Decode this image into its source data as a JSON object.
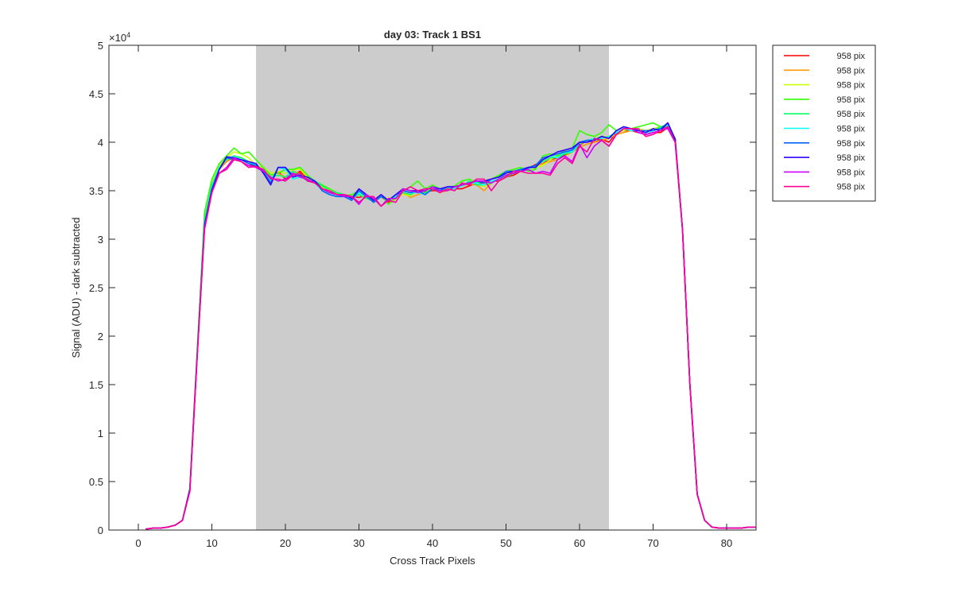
{
  "chart_data": {
    "type": "line",
    "title": "day 03: Track 1  BS1",
    "xlabel": "Cross Track Pixels",
    "ylabel": "Signal (ADU) - dark subtracted",
    "y_exponent_label": "×10",
    "y_exponent": "4",
    "xlim": [
      -4,
      84
    ],
    "ylim": [
      0,
      5
    ],
    "xticks": [
      0,
      10,
      20,
      30,
      40,
      50,
      60,
      70,
      80
    ],
    "yticks": [
      0,
      0.5,
      1,
      1.5,
      2,
      2.5,
      3,
      3.5,
      4,
      4.5,
      5
    ],
    "ytick_labels": [
      "0",
      "0.5",
      "1",
      "1.5",
      "2",
      "2.5",
      "3",
      "3.5",
      "4",
      "4.5",
      "5"
    ],
    "shaded_region": {
      "x": [
        16,
        64
      ],
      "color": "#cccccc"
    },
    "legend_placement": "outside-top-right",
    "grid": false,
    "x": [
      1,
      2,
      3,
      4,
      5,
      6,
      7,
      8,
      9,
      10,
      11,
      12,
      13,
      14,
      15,
      16,
      17,
      18,
      19,
      20,
      21,
      22,
      23,
      24,
      25,
      26,
      27,
      28,
      29,
      30,
      31,
      32,
      33,
      34,
      35,
      36,
      37,
      38,
      39,
      40,
      41,
      42,
      43,
      44,
      45,
      46,
      47,
      48,
      49,
      50,
      51,
      52,
      53,
      54,
      55,
      56,
      57,
      58,
      59,
      60,
      61,
      62,
      63,
      64,
      65,
      66,
      67,
      68,
      69,
      70,
      71,
      72,
      73,
      74,
      75,
      76,
      77,
      78,
      79,
      80,
      81,
      82,
      83,
      84
    ],
    "series": [
      {
        "name": "958 pix",
        "color": "#ff0000",
        "values": [
          0.01,
          0.02,
          0.02,
          0.03,
          0.05,
          0.1,
          0.42,
          1.8,
          3.15,
          3.5,
          3.72,
          3.8,
          3.85,
          3.82,
          3.78,
          3.74,
          3.7,
          3.62,
          3.7,
          3.62,
          3.66,
          3.7,
          3.62,
          3.58,
          3.54,
          3.5,
          3.46,
          3.44,
          3.44,
          3.43,
          3.45,
          3.38,
          3.44,
          3.38,
          3.44,
          3.5,
          3.48,
          3.5,
          3.49,
          3.5,
          3.5,
          3.52,
          3.52,
          3.52,
          3.55,
          3.58,
          3.58,
          3.6,
          3.6,
          3.64,
          3.66,
          3.7,
          3.73,
          3.77,
          3.78,
          3.82,
          3.84,
          3.87,
          3.9,
          3.97,
          4.02,
          4.0,
          4.03,
          4.0,
          4.1,
          4.12,
          4.12,
          4.1,
          4.08,
          4.1,
          4.1,
          4.15,
          4.02,
          3.1,
          1.5,
          0.37,
          0.1,
          0.03,
          0.02,
          0.02,
          0.02,
          0.02,
          0.03,
          0.03
        ]
      },
      {
        "name": "958 pix",
        "color": "#ff9900",
        "values": [
          0.01,
          0.02,
          0.02,
          0.03,
          0.05,
          0.1,
          0.42,
          1.8,
          3.18,
          3.52,
          3.72,
          3.8,
          3.86,
          3.84,
          3.8,
          3.76,
          3.72,
          3.66,
          3.68,
          3.64,
          3.7,
          3.68,
          3.62,
          3.58,
          3.54,
          3.5,
          3.47,
          3.45,
          3.42,
          3.46,
          3.42,
          3.4,
          3.44,
          3.4,
          3.42,
          3.48,
          3.43,
          3.46,
          3.48,
          3.52,
          3.48,
          3.5,
          3.52,
          3.55,
          3.57,
          3.56,
          3.5,
          3.58,
          3.62,
          3.65,
          3.68,
          3.7,
          3.72,
          3.75,
          3.78,
          3.8,
          3.82,
          3.86,
          3.9,
          3.95,
          3.98,
          4.0,
          4.02,
          4.04,
          4.08,
          4.1,
          4.12,
          4.12,
          4.1,
          4.12,
          4.14,
          4.16,
          4.02,
          3.1,
          1.5,
          0.37,
          0.1,
          0.03,
          0.02,
          0.02,
          0.02,
          0.02,
          0.03,
          0.03
        ]
      },
      {
        "name": "958 pix",
        "color": "#ccff00",
        "values": [
          0.01,
          0.02,
          0.02,
          0.03,
          0.05,
          0.1,
          0.42,
          1.82,
          3.22,
          3.58,
          3.76,
          3.84,
          3.9,
          3.88,
          3.84,
          3.76,
          3.74,
          3.68,
          3.7,
          3.68,
          3.72,
          3.72,
          3.64,
          3.58,
          3.54,
          3.5,
          3.48,
          3.46,
          3.44,
          3.46,
          3.44,
          3.4,
          3.44,
          3.42,
          3.44,
          3.46,
          3.45,
          3.5,
          3.5,
          3.52,
          3.5,
          3.52,
          3.54,
          3.55,
          3.58,
          3.58,
          3.54,
          3.6,
          3.62,
          3.66,
          3.7,
          3.72,
          3.72,
          3.74,
          3.76,
          3.82,
          3.86,
          3.9,
          3.92,
          3.98,
          4.02,
          4.04,
          4.06,
          4.06,
          4.1,
          4.12,
          4.14,
          4.14,
          4.12,
          4.14,
          4.16,
          4.18,
          4.04,
          3.1,
          1.5,
          0.37,
          0.1,
          0.03,
          0.02,
          0.02,
          0.02,
          0.02,
          0.03,
          0.03
        ]
      },
      {
        "name": "958 pix",
        "color": "#33ff00",
        "values": [
          0.01,
          0.02,
          0.02,
          0.03,
          0.05,
          0.1,
          0.43,
          1.85,
          3.28,
          3.62,
          3.78,
          3.86,
          3.94,
          3.88,
          3.9,
          3.82,
          3.74,
          3.66,
          3.68,
          3.72,
          3.72,
          3.74,
          3.66,
          3.6,
          3.56,
          3.52,
          3.48,
          3.45,
          3.46,
          3.5,
          3.44,
          3.38,
          3.46,
          3.36,
          3.42,
          3.5,
          3.54,
          3.6,
          3.52,
          3.56,
          3.52,
          3.52,
          3.55,
          3.6,
          3.62,
          3.58,
          3.6,
          3.62,
          3.66,
          3.7,
          3.72,
          3.74,
          3.7,
          3.72,
          3.86,
          3.88,
          3.86,
          3.92,
          3.94,
          4.12,
          4.08,
          4.06,
          4.1,
          4.18,
          4.12,
          4.16,
          4.14,
          4.16,
          4.18,
          4.2,
          4.16,
          4.18,
          4.04,
          3.1,
          1.5,
          0.37,
          0.1,
          0.03,
          0.02,
          0.02,
          0.02,
          0.02,
          0.03,
          0.03
        ]
      },
      {
        "name": "958 pix",
        "color": "#00ff66",
        "values": [
          0.01,
          0.02,
          0.02,
          0.03,
          0.05,
          0.1,
          0.42,
          1.82,
          3.2,
          3.56,
          3.74,
          3.82,
          3.86,
          3.84,
          3.8,
          3.76,
          3.72,
          3.64,
          3.66,
          3.64,
          3.7,
          3.66,
          3.64,
          3.6,
          3.55,
          3.5,
          3.48,
          3.46,
          3.44,
          3.46,
          3.42,
          3.4,
          3.44,
          3.4,
          3.44,
          3.48,
          3.46,
          3.5,
          3.48,
          3.52,
          3.5,
          3.52,
          3.52,
          3.55,
          3.6,
          3.56,
          3.56,
          3.58,
          3.62,
          3.64,
          3.68,
          3.7,
          3.72,
          3.76,
          3.8,
          3.84,
          3.84,
          3.88,
          3.9,
          3.98,
          4.02,
          4.02,
          4.04,
          4.06,
          4.1,
          4.14,
          4.14,
          4.12,
          4.1,
          4.12,
          4.16,
          4.16,
          4.02,
          3.1,
          1.5,
          0.37,
          0.1,
          0.03,
          0.02,
          0.02,
          0.02,
          0.02,
          0.03,
          0.03
        ]
      },
      {
        "name": "958 pix",
        "color": "#00ffff",
        "values": [
          0.01,
          0.02,
          0.02,
          0.03,
          0.05,
          0.1,
          0.42,
          1.8,
          3.18,
          3.54,
          3.74,
          3.84,
          3.85,
          3.82,
          3.8,
          3.76,
          3.7,
          3.6,
          3.74,
          3.72,
          3.62,
          3.64,
          3.62,
          3.58,
          3.5,
          3.46,
          3.44,
          3.46,
          3.4,
          3.48,
          3.44,
          3.38,
          3.44,
          3.4,
          3.44,
          3.5,
          3.48,
          3.48,
          3.46,
          3.52,
          3.5,
          3.54,
          3.52,
          3.55,
          3.58,
          3.58,
          3.56,
          3.6,
          3.62,
          3.68,
          3.7,
          3.72,
          3.72,
          3.76,
          3.82,
          3.86,
          3.84,
          3.9,
          3.9,
          4.0,
          4.02,
          4.04,
          4.04,
          4.06,
          4.1,
          4.14,
          4.12,
          4.12,
          4.1,
          4.12,
          4.14,
          4.18,
          4.03,
          3.1,
          1.5,
          0.37,
          0.1,
          0.03,
          0.02,
          0.02,
          0.02,
          0.02,
          0.03,
          0.03
        ]
      },
      {
        "name": "958 pix",
        "color": "#0066ff",
        "values": [
          0.01,
          0.02,
          0.02,
          0.03,
          0.05,
          0.1,
          0.42,
          1.8,
          3.16,
          3.52,
          3.72,
          3.84,
          3.82,
          3.82,
          3.78,
          3.76,
          3.7,
          3.58,
          3.74,
          3.74,
          3.66,
          3.66,
          3.6,
          3.6,
          3.5,
          3.46,
          3.44,
          3.44,
          3.4,
          3.5,
          3.44,
          3.38,
          3.44,
          3.4,
          3.46,
          3.5,
          3.48,
          3.5,
          3.46,
          3.52,
          3.5,
          3.54,
          3.54,
          3.56,
          3.58,
          3.6,
          3.58,
          3.62,
          3.64,
          3.7,
          3.7,
          3.72,
          3.74,
          3.76,
          3.84,
          3.86,
          3.88,
          3.9,
          3.92,
          4.0,
          4.02,
          4.02,
          4.06,
          4.04,
          4.12,
          4.16,
          4.14,
          4.12,
          4.12,
          4.12,
          4.14,
          4.2,
          4.03,
          3.1,
          1.5,
          0.37,
          0.1,
          0.03,
          0.02,
          0.02,
          0.02,
          0.02,
          0.03,
          0.03
        ]
      },
      {
        "name": "958 pix",
        "color": "#3300ff",
        "values": [
          0.01,
          0.02,
          0.02,
          0.03,
          0.05,
          0.1,
          0.42,
          1.8,
          3.14,
          3.5,
          3.72,
          3.85,
          3.84,
          3.82,
          3.8,
          3.78,
          3.68,
          3.56,
          3.74,
          3.74,
          3.64,
          3.66,
          3.64,
          3.6,
          3.52,
          3.48,
          3.46,
          3.46,
          3.42,
          3.52,
          3.46,
          3.4,
          3.46,
          3.4,
          3.46,
          3.52,
          3.5,
          3.5,
          3.5,
          3.54,
          3.52,
          3.54,
          3.54,
          3.56,
          3.58,
          3.6,
          3.6,
          3.62,
          3.64,
          3.68,
          3.7,
          3.7,
          3.74,
          3.74,
          3.82,
          3.86,
          3.9,
          3.92,
          3.94,
          4.0,
          4.0,
          4.02,
          4.06,
          4.04,
          4.12,
          4.16,
          4.14,
          4.12,
          4.1,
          4.14,
          4.12,
          4.2,
          4.03,
          3.1,
          1.5,
          0.37,
          0.1,
          0.03,
          0.02,
          0.02,
          0.02,
          0.02,
          0.03,
          0.03
        ]
      },
      {
        "name": "958 pix",
        "color": "#cc00ff",
        "values": [
          0.01,
          0.02,
          0.02,
          0.03,
          0.05,
          0.1,
          0.4,
          1.78,
          3.12,
          3.48,
          3.68,
          3.74,
          3.84,
          3.8,
          3.76,
          3.74,
          3.7,
          3.64,
          3.6,
          3.62,
          3.68,
          3.64,
          3.62,
          3.58,
          3.52,
          3.48,
          3.46,
          3.44,
          3.44,
          3.36,
          3.46,
          3.42,
          3.34,
          3.42,
          3.42,
          3.52,
          3.5,
          3.48,
          3.5,
          3.54,
          3.5,
          3.5,
          3.54,
          3.56,
          3.58,
          3.6,
          3.6,
          3.58,
          3.62,
          3.66,
          3.68,
          3.7,
          3.72,
          3.68,
          3.7,
          3.68,
          3.82,
          3.86,
          3.8,
          3.98,
          3.84,
          3.96,
          4.02,
          3.96,
          4.08,
          4.14,
          4.14,
          4.1,
          4.08,
          4.1,
          4.12,
          4.14,
          4.0,
          3.1,
          1.5,
          0.37,
          0.1,
          0.03,
          0.02,
          0.02,
          0.02,
          0.02,
          0.03,
          0.03
        ]
      },
      {
        "name": "958 pix",
        "color": "#ff0099",
        "values": [
          0.01,
          0.02,
          0.02,
          0.03,
          0.05,
          0.1,
          0.4,
          1.78,
          3.1,
          3.48,
          3.68,
          3.72,
          3.82,
          3.8,
          3.74,
          3.75,
          3.72,
          3.62,
          3.62,
          3.6,
          3.66,
          3.68,
          3.6,
          3.58,
          3.52,
          3.5,
          3.46,
          3.46,
          3.44,
          3.38,
          3.44,
          3.44,
          3.34,
          3.4,
          3.38,
          3.5,
          3.54,
          3.5,
          3.52,
          3.52,
          3.48,
          3.52,
          3.5,
          3.58,
          3.56,
          3.62,
          3.62,
          3.5,
          3.6,
          3.64,
          3.7,
          3.7,
          3.68,
          3.68,
          3.68,
          3.66,
          3.78,
          3.84,
          3.78,
          3.96,
          3.9,
          4.04,
          4.02,
          3.96,
          4.08,
          4.14,
          4.14,
          4.14,
          4.06,
          4.08,
          4.12,
          4.16,
          4.0,
          3.1,
          1.5,
          0.37,
          0.1,
          0.03,
          0.02,
          0.02,
          0.02,
          0.02,
          0.03,
          0.03
        ]
      }
    ]
  }
}
